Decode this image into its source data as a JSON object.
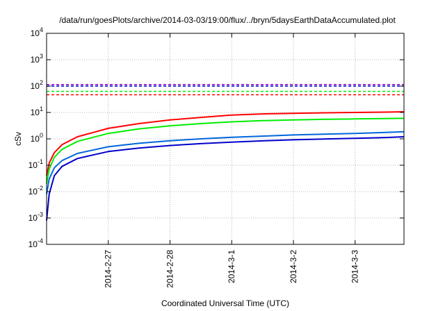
{
  "chart_data": {
    "type": "line",
    "title": "/data/run/goesPlots/archive/2014-03-03/19:00/flux/../bryn/5daysEarthDataAccumulated.plot",
    "xlabel": "Coordinated Universal Time (UTC)",
    "ylabel": "cSv",
    "y_scale": "log",
    "ylim": [
      0.0001,
      10000
    ],
    "xlim": [
      "2014-02-26 00:00",
      "2014-03-03 19:00"
    ],
    "grid": true,
    "x_ticks": [
      "2014-2-27",
      "2014-2-28",
      "2014-3-1",
      "2014-3-2",
      "2014-3-3"
    ],
    "y_ticks": [
      {
        "base": "10",
        "exp": "-4",
        "value": 0.0001
      },
      {
        "base": "10",
        "exp": "-3",
        "value": 0.001
      },
      {
        "base": "10",
        "exp": "-2",
        "value": 0.01
      },
      {
        "base": "10",
        "exp": "-1",
        "value": 0.1
      },
      {
        "base": "10",
        "exp": "0",
        "value": 1
      },
      {
        "base": "10",
        "exp": "1",
        "value": 10
      },
      {
        "base": "10",
        "exp": "2",
        "value": 100
      },
      {
        "base": "10",
        "exp": "3",
        "value": 1000
      },
      {
        "base": "10",
        "exp": "4",
        "value": 10000
      }
    ],
    "series": [
      {
        "color": "#ff0000",
        "style": "solid",
        "x": [
          "2014-02-26 00:00",
          "2014-02-26 01:00",
          "2014-02-26 03:00",
          "2014-02-26 06:00",
          "2014-02-26 12:00",
          "2014-02-27 00:00",
          "2014-02-27 12:00",
          "2014-02-28 00:00",
          "2014-02-28 12:00",
          "2014-03-01 00:00",
          "2014-03-01 12:00",
          "2014-03-02 00:00",
          "2014-03-02 12:00",
          "2014-03-03 00:00",
          "2014-03-03 12:00",
          "2014-03-03 19:00"
        ],
        "y": [
          0.04,
          0.12,
          0.3,
          0.6,
          1.2,
          2.5,
          3.8,
          5.2,
          6.5,
          8,
          8.8,
          9.3,
          9.7,
          10,
          10.3,
          10.6
        ]
      },
      {
        "color": "#00ee00",
        "style": "solid",
        "x": [
          "2014-02-26 00:00",
          "2014-02-26 01:00",
          "2014-02-26 03:00",
          "2014-02-26 06:00",
          "2014-02-26 12:00",
          "2014-02-27 00:00",
          "2014-02-27 12:00",
          "2014-02-28 00:00",
          "2014-02-28 12:00",
          "2014-03-01 00:00",
          "2014-03-01 12:00",
          "2014-03-02 00:00",
          "2014-03-02 12:00",
          "2014-03-03 00:00",
          "2014-03-03 12:00",
          "2014-03-03 19:00"
        ],
        "y": [
          0.02,
          0.07,
          0.2,
          0.4,
          0.8,
          1.6,
          2.4,
          3.1,
          3.8,
          4.4,
          4.9,
          5.2,
          5.5,
          5.7,
          5.9,
          6.0
        ]
      },
      {
        "color": "#0066dd",
        "style": "solid",
        "x": [
          "2014-02-26 00:00",
          "2014-02-26 01:00",
          "2014-02-26 03:00",
          "2014-02-26 06:00",
          "2014-02-26 12:00",
          "2014-02-27 00:00",
          "2014-02-27 12:00",
          "2014-02-28 00:00",
          "2014-02-28 12:00",
          "2014-03-01 00:00",
          "2014-03-01 12:00",
          "2014-03-02 00:00",
          "2014-03-02 12:00",
          "2014-03-03 00:00",
          "2014-03-03 12:00",
          "2014-03-03 19:00"
        ],
        "y": [
          0.008,
          0.03,
          0.08,
          0.15,
          0.28,
          0.5,
          0.68,
          0.85,
          1.0,
          1.15,
          1.27,
          1.4,
          1.5,
          1.6,
          1.75,
          1.85
        ]
      },
      {
        "color": "#0000cc",
        "style": "solid",
        "x": [
          "2014-02-26 00:00",
          "2014-02-26 01:00",
          "2014-02-26 03:00",
          "2014-02-26 06:00",
          "2014-02-26 12:00",
          "2014-02-27 00:00",
          "2014-02-27 12:00",
          "2014-02-28 00:00",
          "2014-02-28 12:00",
          "2014-03-01 00:00",
          "2014-03-01 12:00",
          "2014-03-02 00:00",
          "2014-03-02 12:00",
          "2014-03-03 00:00",
          "2014-03-03 12:00",
          "2014-03-03 19:00"
        ],
        "y": [
          0.0008,
          0.008,
          0.04,
          0.09,
          0.18,
          0.33,
          0.45,
          0.56,
          0.66,
          0.75,
          0.84,
          0.92,
          0.99,
          1.05,
          1.12,
          1.2
        ]
      }
    ],
    "threshold_lines": [
      {
        "color": "#8800cc",
        "style": "dashed",
        "y": 115
      },
      {
        "color": "#0000cc",
        "style": "dashed",
        "y": 100
      },
      {
        "color": "#00ee00",
        "style": "dashed",
        "y": 63
      },
      {
        "color": "#ff0000",
        "style": "dashed",
        "y": 47
      }
    ]
  }
}
